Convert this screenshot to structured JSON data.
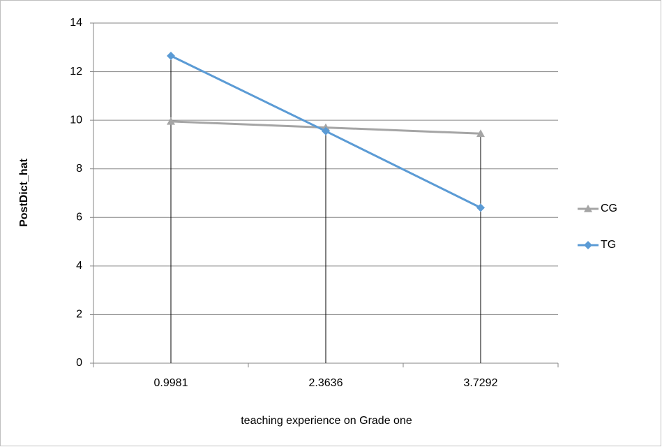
{
  "chart_data": {
    "type": "line",
    "x_label": "teaching experience on Grade one",
    "y_label": "PostDict_hat",
    "categories": [
      "0.9981",
      "2.3636",
      "3.7292"
    ],
    "series": [
      {
        "name": "CG",
        "color": "#a5a5a5",
        "marker": "triangle",
        "values": [
          9.95,
          9.7,
          9.45
        ]
      },
      {
        "name": "TG",
        "color": "#5b9bd5",
        "marker": "diamond",
        "values": [
          12.65,
          9.55,
          6.4
        ]
      }
    ],
    "ylim": [
      0,
      14
    ],
    "yticks": [
      0,
      2,
      4,
      6,
      8,
      10,
      12,
      14
    ],
    "grid": true,
    "drop_lines": true,
    "legend": "right"
  }
}
